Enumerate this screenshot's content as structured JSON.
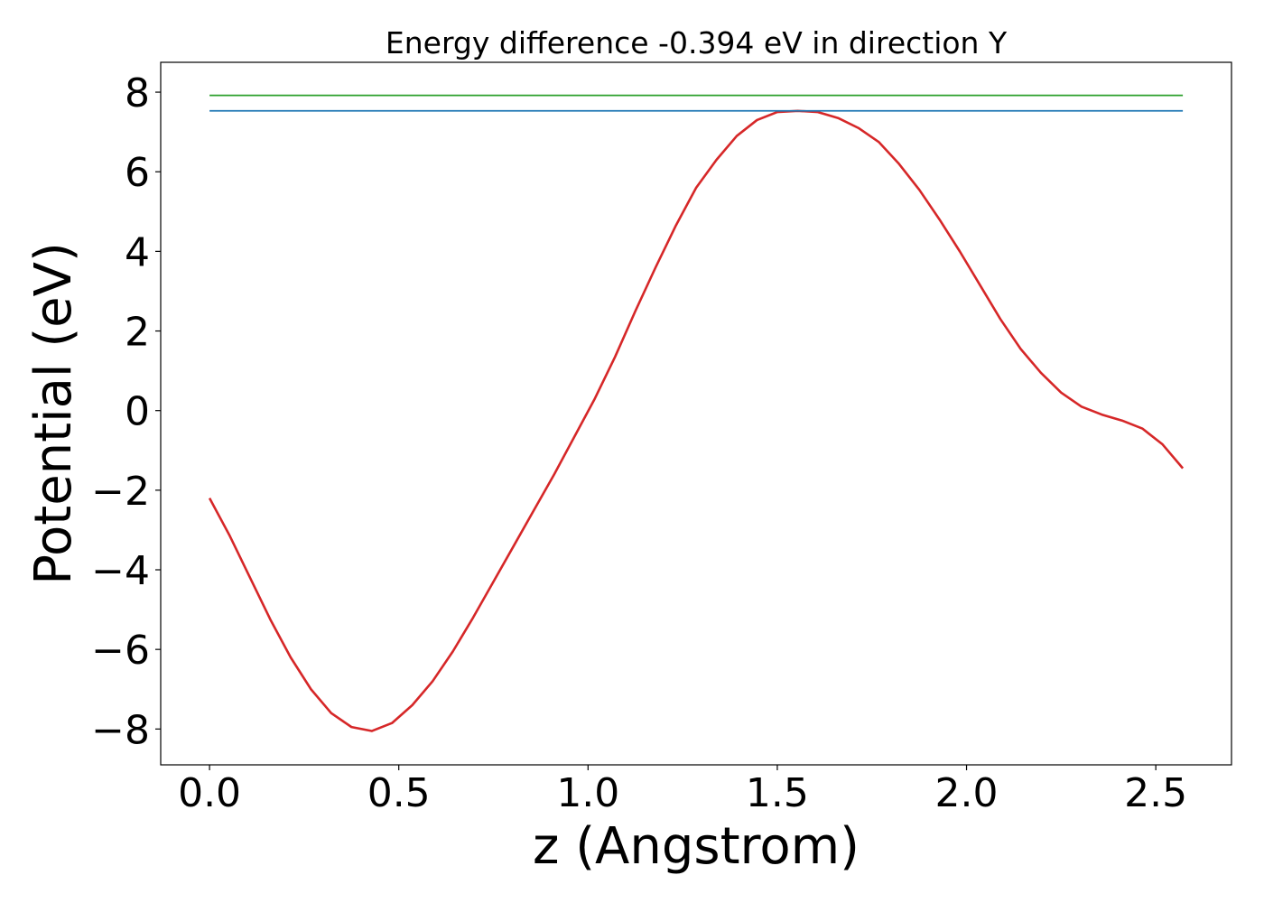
{
  "chart_data": {
    "type": "line",
    "title": "Energy difference -0.394 eV in direction Y",
    "xlabel": "z (Angstrom)",
    "ylabel": "Potential (eV)",
    "xlim": [
      -0.129,
      2.7
    ],
    "ylim": [
      -8.9,
      8.75
    ],
    "x_ticks": [
      0.0,
      0.5,
      1.0,
      1.5,
      2.0,
      2.5
    ],
    "x_tick_labels": [
      "0.0",
      "0.5",
      "1.0",
      "1.5",
      "2.0",
      "2.5"
    ],
    "y_ticks": [
      8,
      6,
      4,
      2,
      0,
      -2,
      -4,
      -6,
      -8
    ],
    "y_tick_labels": [
      "8",
      "6",
      "4",
      "2",
      "0",
      "−2",
      "−4",
      "−6",
      "−8"
    ],
    "grid": false,
    "series": [
      {
        "color": "#d62728",
        "x": [
          0.0,
          0.0536,
          0.1071,
          0.1607,
          0.2143,
          0.2679,
          0.3214,
          0.375,
          0.4286,
          0.4821,
          0.5357,
          0.5893,
          0.6429,
          0.6964,
          0.75,
          0.8036,
          0.8571,
          0.9107,
          0.9643,
          1.0179,
          1.0714,
          1.125,
          1.1786,
          1.2321,
          1.2857,
          1.3393,
          1.3929,
          1.4464,
          1.5,
          1.5536,
          1.6071,
          1.6607,
          1.7143,
          1.7679,
          1.8214,
          1.875,
          1.9286,
          1.9821,
          2.0357,
          2.0893,
          2.1429,
          2.1964,
          2.25,
          2.3036,
          2.3571,
          2.4107,
          2.4643,
          2.5179,
          2.5714
        ],
        "y": [
          -2.2,
          -3.15,
          -4.2,
          -5.25,
          -6.2,
          -7.0,
          -7.6,
          -7.95,
          -8.05,
          -7.85,
          -7.4,
          -6.8,
          -6.05,
          -5.2,
          -4.3,
          -3.4,
          -2.5,
          -1.6,
          -0.65,
          0.3,
          1.35,
          2.5,
          3.6,
          4.65,
          5.6,
          6.3,
          6.9,
          7.3,
          7.5,
          7.53,
          7.5,
          7.35,
          7.1,
          6.75,
          6.2,
          5.55,
          4.8,
          4.0,
          3.15,
          2.3,
          1.55,
          0.95,
          0.45,
          0.1,
          -0.1,
          -0.25,
          -0.45,
          -0.85,
          -1.45
        ]
      },
      {
        "color": "#2ca02c",
        "x": [
          0.0,
          2.5714
        ],
        "y": [
          7.92,
          7.92
        ]
      },
      {
        "color": "#1f77b4",
        "x": [
          0.0,
          2.5714
        ],
        "y": [
          7.53,
          7.53
        ]
      }
    ]
  }
}
